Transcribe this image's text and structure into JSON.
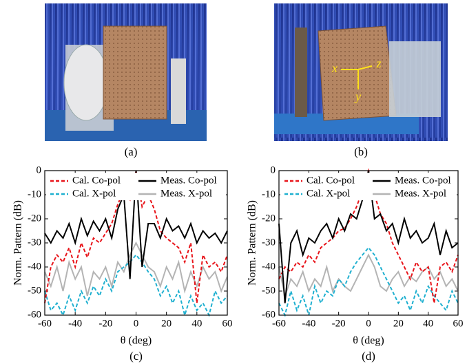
{
  "photos": [
    {
      "caption": "(a)"
    },
    {
      "caption": "(b)",
      "axis_labels": [
        "x",
        "y",
        "z"
      ]
    }
  ],
  "chart_data": [
    {
      "type": "line",
      "caption": "(c)",
      "xlabel": "θ (deg)",
      "ylabel": "Norm. Pattern (dB)",
      "x": [
        -60,
        -56,
        -52,
        -48,
        -44,
        -40,
        -36,
        -32,
        -28,
        -24,
        -20,
        -16,
        -12,
        -8,
        -4,
        0,
        4,
        8,
        12,
        16,
        20,
        24,
        28,
        32,
        36,
        40,
        44,
        48,
        52,
        56,
        60
      ],
      "xlim": [
        -60,
        60
      ],
      "xticks": [
        -60,
        -40,
        -20,
        0,
        20,
        40,
        60
      ],
      "ylim": [
        -60,
        0
      ],
      "yticks": [
        0,
        -10,
        -20,
        -30,
        -40,
        -50,
        -60
      ],
      "series": [
        {
          "name": "Cal. Co-pol",
          "color": "#e8141a",
          "style": "dashed",
          "values": [
            -55,
            -40,
            -35,
            -38,
            -32,
            -40,
            -30,
            -36,
            -28,
            -30,
            -26,
            -22,
            -14,
            -8,
            -12,
            0,
            -15,
            -10,
            -16,
            -25,
            -28,
            -30,
            -32,
            -38,
            -30,
            -55,
            -35,
            -40,
            -38,
            -42,
            -35
          ]
        },
        {
          "name": "Meas. Co-pol",
          "color": "#000000",
          "style": "solid",
          "values": [
            -26,
            -30,
            -25,
            -28,
            -22,
            -30,
            -20,
            -27,
            -21,
            -25,
            -20,
            -28,
            -16,
            -10,
            -45,
            0,
            -40,
            -22,
            -22,
            -28,
            -20,
            -25,
            -23,
            -28,
            -22,
            -30,
            -25,
            -28,
            -26,
            -30,
            -25
          ]
        },
        {
          "name": "Cal. X-pol",
          "color": "#1fb0d0",
          "style": "dashed",
          "values": [
            -50,
            -58,
            -55,
            -60,
            -52,
            -58,
            -50,
            -55,
            -48,
            -52,
            -45,
            -50,
            -42,
            -40,
            -38,
            -35,
            -38,
            -42,
            -45,
            -52,
            -48,
            -55,
            -50,
            -60,
            -52,
            -58,
            -55,
            -60,
            -50,
            -55,
            -52
          ]
        },
        {
          "name": "Meas. X-pol",
          "color": "#b4b4b4",
          "style": "solid",
          "values": [
            -42,
            -48,
            -40,
            -50,
            -38,
            -45,
            -40,
            -52,
            -42,
            -45,
            -40,
            -48,
            -38,
            -42,
            -35,
            -30,
            -35,
            -40,
            -42,
            -48,
            -40,
            -45,
            -38,
            -50,
            -42,
            -48,
            -40,
            -45,
            -42,
            -50,
            -44
          ]
        }
      ]
    },
    {
      "type": "line",
      "caption": "(d)",
      "xlabel": "θ (deg)",
      "ylabel": "Norm. Pattern (dB)",
      "x": [
        -60,
        -56,
        -52,
        -48,
        -44,
        -40,
        -36,
        -32,
        -28,
        -24,
        -20,
        -16,
        -12,
        -8,
        -4,
        0,
        4,
        8,
        12,
        16,
        20,
        24,
        28,
        32,
        36,
        40,
        44,
        48,
        52,
        56,
        60
      ],
      "xlim": [
        -60,
        60
      ],
      "xticks": [
        -60,
        -40,
        -20,
        0,
        20,
        40,
        60
      ],
      "ylim": [
        -60,
        0
      ],
      "yticks": [
        0,
        -10,
        -20,
        -30,
        -40,
        -50,
        -60
      ],
      "series": [
        {
          "name": "Cal. Co-pol",
          "color": "#e8141a",
          "style": "dashed",
          "values": [
            -45,
            -40,
            -42,
            -38,
            -40,
            -35,
            -38,
            -32,
            -30,
            -28,
            -25,
            -24,
            -20,
            -15,
            -8,
            0,
            -10,
            -18,
            -22,
            -30,
            -35,
            -40,
            -45,
            -38,
            -42,
            -40,
            -55,
            -40,
            -38,
            -42,
            -35
          ]
        },
        {
          "name": "Meas. Co-pol",
          "color": "#000000",
          "style": "solid",
          "values": [
            -22,
            -55,
            -30,
            -25,
            -35,
            -28,
            -30,
            -25,
            -22,
            -28,
            -20,
            -25,
            -18,
            -20,
            -12,
            0,
            -20,
            -18,
            -25,
            -22,
            -30,
            -20,
            -28,
            -25,
            -30,
            -28,
            -22,
            -35,
            -25,
            -32,
            -30
          ]
        },
        {
          "name": "Cal. X-pol",
          "color": "#1fb0d0",
          "style": "dashed",
          "values": [
            -55,
            -60,
            -50,
            -58,
            -52,
            -60,
            -48,
            -55,
            -50,
            -52,
            -45,
            -48,
            -42,
            -38,
            -35,
            -32,
            -35,
            -40,
            -45,
            -50,
            -55,
            -52,
            -58,
            -50,
            -55,
            -48,
            -52,
            -55,
            -58,
            -50,
            -55
          ]
        },
        {
          "name": "Meas. X-pol",
          "color": "#b4b4b4",
          "style": "solid",
          "values": [
            -40,
            -52,
            -45,
            -48,
            -42,
            -50,
            -45,
            -48,
            -40,
            -50,
            -45,
            -48,
            -50,
            -45,
            -40,
            -35,
            -40,
            -48,
            -50,
            -45,
            -42,
            -48,
            -44,
            -46,
            -42,
            -40,
            -45,
            -42,
            -48,
            -45,
            -50
          ]
        }
      ]
    }
  ]
}
